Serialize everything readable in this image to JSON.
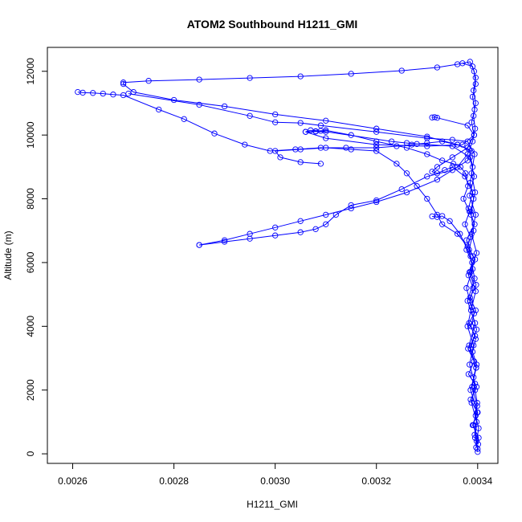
{
  "chart_data": {
    "type": "line",
    "title": "ATOM2 Southbound H1211_GMI",
    "xlabel": "H1211_GMI",
    "ylabel": "Altitude (m)",
    "xlim": [
      0.00255,
      0.00344
    ],
    "ylim": [
      -300,
      12750
    ],
    "x_ticks": [
      0.0026,
      0.0028,
      0.003,
      0.0032,
      0.0034
    ],
    "x_tick_labels": [
      "0.0026",
      "0.0028",
      "0.0030",
      "0.0032",
      "0.0034"
    ],
    "y_ticks": [
      0,
      2000,
      4000,
      6000,
      8000,
      10000,
      12000
    ],
    "y_tick_labels": [
      "0",
      "2000",
      "4000",
      "6000",
      "8000",
      "10000",
      "12000"
    ],
    "grid": false,
    "color": "#0000ff",
    "marker": "open-circle",
    "series": [
      {
        "points": [
          [
            0.0034,
            60
          ],
          [
            0.003398,
            400
          ],
          [
            0.003402,
            800
          ],
          [
            0.003396,
            1200
          ],
          [
            0.003399,
            1600
          ],
          [
            0.003395,
            2000
          ],
          [
            0.003392,
            2400
          ],
          [
            0.003398,
            2800
          ],
          [
            0.00339,
            3200
          ],
          [
            0.003396,
            3600
          ],
          [
            0.003387,
            4000
          ],
          [
            0.003393,
            4400
          ],
          [
            0.003385,
            4800
          ],
          [
            0.003391,
            5200
          ],
          [
            0.003382,
            5600
          ],
          [
            0.003389,
            6000
          ],
          [
            0.003378,
            6400
          ],
          [
            0.003386,
            6800
          ],
          [
            0.003375,
            7200
          ],
          [
            0.003384,
            7600
          ],
          [
            0.003372,
            8000
          ],
          [
            0.003381,
            8400
          ],
          [
            0.003376,
            8800
          ],
          [
            0.003366,
            9000
          ],
          [
            0.003352,
            9100
          ],
          [
            0.00333,
            9200
          ],
          [
            0.0033,
            9400
          ],
          [
            0.00326,
            9600
          ],
          [
            0.0032,
            9800
          ],
          [
            0.00315,
            10000
          ],
          [
            0.0031,
            10150
          ],
          [
            0.00308,
            10120
          ],
          [
            0.00306,
            10100
          ],
          [
            0.0031,
            9900
          ],
          [
            0.0032,
            9700
          ],
          [
            0.0033,
            9650
          ],
          [
            0.00337,
            9700
          ],
          [
            0.003393,
            10000
          ],
          [
            0.003388,
            10400
          ],
          [
            0.003394,
            10800
          ],
          [
            0.00339,
            11200
          ],
          [
            0.003396,
            11600
          ],
          [
            0.003393,
            12000
          ],
          [
            0.003385,
            12300
          ],
          [
            0.00336,
            12220
          ],
          [
            0.00332,
            12120
          ],
          [
            0.00325,
            12020
          ],
          [
            0.00315,
            11920
          ],
          [
            0.00305,
            11840
          ],
          [
            0.00295,
            11790
          ],
          [
            0.00285,
            11740
          ],
          [
            0.00275,
            11700
          ],
          [
            0.0027,
            11650
          ],
          [
            0.0027,
            11600
          ],
          [
            0.00272,
            11350
          ],
          [
            0.0028,
            11100
          ],
          [
            0.0029,
            10900
          ],
          [
            0.003,
            10650
          ],
          [
            0.0031,
            10450
          ],
          [
            0.0032,
            10200
          ],
          [
            0.0033,
            9950
          ],
          [
            0.00336,
            9700
          ],
          [
            0.003388,
            9500
          ],
          [
            0.00338,
            9200
          ],
          [
            0.00335,
            8900
          ],
          [
            0.0033,
            8700
          ],
          [
            0.00325,
            8300
          ],
          [
            0.0032,
            7950
          ],
          [
            0.00315,
            7800
          ],
          [
            0.00312,
            7500
          ],
          [
            0.0031,
            7200
          ],
          [
            0.00308,
            7050
          ],
          [
            0.00305,
            6950
          ],
          [
            0.003,
            6850
          ],
          [
            0.00295,
            6750
          ],
          [
            0.0029,
            6650
          ],
          [
            0.00285,
            6550
          ]
        ]
      },
      {
        "points": [
          [
            0.00285,
            6550
          ],
          [
            0.0029,
            6700
          ],
          [
            0.00295,
            6900
          ],
          [
            0.003,
            7100
          ],
          [
            0.00305,
            7300
          ],
          [
            0.0031,
            7500
          ],
          [
            0.00315,
            7700
          ],
          [
            0.0032,
            7900
          ],
          [
            0.00326,
            8200
          ],
          [
            0.00332,
            8600
          ],
          [
            0.00336,
            9000
          ],
          [
            0.00338,
            9400
          ],
          [
            0.00339,
            9800
          ],
          [
            0.003395,
            10200
          ],
          [
            0.003392,
            10600
          ],
          [
            0.003396,
            11000
          ],
          [
            0.003392,
            11400
          ],
          [
            0.003396,
            11800
          ],
          [
            0.00339,
            12150
          ],
          [
            0.00337,
            12250
          ]
        ]
      },
      {
        "points": [
          [
            0.00261,
            11350
          ],
          [
            0.00262,
            11330
          ],
          [
            0.00264,
            11320
          ],
          [
            0.00266,
            11300
          ],
          [
            0.00268,
            11270
          ],
          [
            0.0027,
            11250
          ],
          [
            0.00277,
            10800
          ],
          [
            0.00282,
            10500
          ],
          [
            0.00288,
            10050
          ],
          [
            0.00294,
            9700
          ],
          [
            0.00299,
            9500
          ],
          [
            0.00304,
            9550
          ],
          [
            0.00309,
            9600
          ],
          [
            0.00314,
            9600
          ],
          [
            0.0032,
            9600
          ],
          [
            0.00324,
            9650
          ],
          [
            0.00327,
            9700
          ],
          [
            0.0033,
            9750
          ],
          [
            0.00333,
            9800
          ],
          [
            0.00336,
            9700
          ],
          [
            0.003383,
            9550
          ],
          [
            0.00339,
            9000
          ],
          [
            0.003385,
            8500
          ],
          [
            0.003392,
            8000
          ],
          [
            0.003387,
            7500
          ]
        ]
      },
      {
        "points": [
          [
            0.00271,
            11300
          ],
          [
            0.00285,
            10950
          ],
          [
            0.00295,
            10600
          ],
          [
            0.003,
            10400
          ],
          [
            0.00305,
            10380
          ],
          [
            0.00309,
            10300
          ],
          [
            0.0032,
            10100
          ],
          [
            0.0033,
            9900
          ],
          [
            0.00335,
            9850
          ],
          [
            0.00338,
            9800
          ],
          [
            0.003394,
            9400
          ],
          [
            0.003388,
            8800
          ],
          [
            0.003395,
            8200
          ],
          [
            0.003386,
            7600
          ],
          [
            0.003392,
            7000
          ],
          [
            0.003383,
            6400
          ],
          [
            0.00339,
            5800
          ],
          [
            0.003378,
            5200
          ],
          [
            0.003388,
            4600
          ],
          [
            0.00338,
            4000
          ],
          [
            0.003392,
            3400
          ],
          [
            0.003384,
            2800
          ],
          [
            0.003395,
            2200
          ],
          [
            0.003388,
            1600
          ],
          [
            0.003398,
            1000
          ],
          [
            0.003395,
            500
          ],
          [
            0.0034,
            150
          ]
        ]
      },
      {
        "points": [
          [
            0.00309,
            9100
          ],
          [
            0.00305,
            9150
          ],
          [
            0.00301,
            9300
          ],
          [
            0.003,
            9500
          ],
          [
            0.00305,
            9550
          ],
          [
            0.0031,
            9600
          ],
          [
            0.00315,
            9550
          ],
          [
            0.0032,
            9500
          ],
          [
            0.00324,
            9100
          ],
          [
            0.00326,
            8800
          ],
          [
            0.00328,
            8400
          ],
          [
            0.0033,
            8000
          ],
          [
            0.00332,
            7500
          ],
          [
            0.00333,
            7200
          ],
          [
            0.00336,
            6900
          ],
          [
            0.00338,
            6500
          ],
          [
            0.003395,
            6100
          ],
          [
            0.003386,
            5700
          ],
          [
            0.003397,
            5300
          ],
          [
            0.003385,
            4900
          ],
          [
            0.003396,
            4500
          ],
          [
            0.003383,
            4100
          ],
          [
            0.003395,
            3700
          ],
          [
            0.003381,
            3300
          ],
          [
            0.003393,
            2900
          ],
          [
            0.003382,
            2500
          ],
          [
            0.003398,
            2100
          ],
          [
            0.003386,
            1700
          ],
          [
            0.003399,
            1300
          ],
          [
            0.00339,
            900
          ],
          [
            0.003402,
            500
          ],
          [
            0.003397,
            200
          ]
        ]
      },
      {
        "points": [
          [
            0.00331,
            10550
          ],
          [
            0.003315,
            10560
          ],
          [
            0.00332,
            10540
          ],
          [
            0.00338,
            10300
          ],
          [
            0.003393,
            10000
          ],
          [
            0.00338,
            9600
          ],
          [
            0.00335,
            9300
          ],
          [
            0.00332,
            9000
          ],
          [
            0.00331,
            8850
          ],
          [
            0.00332,
            8800
          ],
          [
            0.003335,
            8900
          ],
          [
            0.00335,
            9000
          ],
          [
            0.003375,
            8700
          ],
          [
            0.00339,
            8200
          ],
          [
            0.003382,
            7700
          ],
          [
            0.003394,
            7200
          ],
          [
            0.003378,
            6700
          ],
          [
            0.00339,
            6200
          ]
        ]
      },
      {
        "points": [
          [
            0.0031,
            10100
          ],
          [
            0.00308,
            10110
          ],
          [
            0.00306,
            10100
          ],
          [
            0.00307,
            10150
          ],
          [
            0.00309,
            10130
          ],
          [
            0.00323,
            9800
          ],
          [
            0.00326,
            9750
          ],
          [
            0.00328,
            9720
          ],
          [
            0.00335,
            9650
          ],
          [
            0.003385,
            9300
          ],
          [
            0.003393,
            8700
          ],
          [
            0.003384,
            8100
          ],
          [
            0.003396,
            7500
          ],
          [
            0.003388,
            6900
          ],
          [
            0.003398,
            6300
          ],
          [
            0.003384,
            5700
          ],
          [
            0.003396,
            5100
          ],
          [
            0.003387,
            4500
          ],
          [
            0.003398,
            3900
          ],
          [
            0.003386,
            3300
          ],
          [
            0.003397,
            2700
          ],
          [
            0.003389,
            2100
          ],
          [
            0.003399,
            1500
          ],
          [
            0.003392,
            900
          ],
          [
            0.003401,
            300
          ]
        ]
      },
      {
        "points": [
          [
            0.00331,
            7450
          ],
          [
            0.00332,
            7430
          ],
          [
            0.00333,
            7460
          ],
          [
            0.003345,
            7300
          ],
          [
            0.003365,
            6900
          ],
          [
            0.003386,
            6200
          ],
          [
            0.003394,
            5500
          ],
          [
            0.00338,
            4800
          ],
          [
            0.003395,
            4100
          ],
          [
            0.003383,
            3400
          ],
          [
            0.003397,
            2700
          ],
          [
            0.003386,
            2000
          ],
          [
            0.0034,
            1300
          ],
          [
            0.003394,
            600
          ]
        ]
      }
    ]
  }
}
